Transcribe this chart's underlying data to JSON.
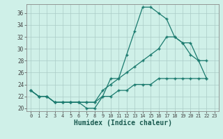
{
  "title": "",
  "xlabel": "Humidex (Indice chaleur)",
  "x": [
    0,
    1,
    2,
    3,
    4,
    5,
    6,
    7,
    8,
    9,
    10,
    11,
    12,
    13,
    14,
    15,
    16,
    17,
    18,
    19,
    20,
    21,
    22,
    23
  ],
  "line1": [
    23,
    22,
    22,
    21,
    21,
    21,
    21,
    20,
    20,
    22,
    25,
    25,
    29,
    33,
    37,
    37,
    36,
    35,
    32,
    31,
    29,
    28,
    25,
    null
  ],
  "line2": [
    23,
    22,
    22,
    21,
    21,
    21,
    21,
    21,
    21,
    23,
    24,
    25,
    26,
    27,
    28,
    29,
    30,
    32,
    32,
    31,
    31,
    28,
    28,
    null
  ],
  "line3": [
    23,
    22,
    22,
    21,
    21,
    21,
    21,
    21,
    21,
    22,
    22,
    23,
    23,
    24,
    24,
    24,
    25,
    25,
    25,
    25,
    25,
    25,
    25,
    null
  ],
  "ylim": [
    19.5,
    37.5
  ],
  "xlim": [
    -0.5,
    23.5
  ],
  "yticks": [
    20,
    22,
    24,
    26,
    28,
    30,
    32,
    34,
    36
  ],
  "xticks": [
    0,
    1,
    2,
    3,
    4,
    5,
    6,
    7,
    8,
    9,
    10,
    11,
    12,
    13,
    14,
    15,
    16,
    17,
    18,
    19,
    20,
    21,
    22,
    23
  ],
  "line_color": "#1a7a6e",
  "bg_color": "#cff0e8",
  "grid_color": "#aaccc6",
  "spine_color": "#888888",
  "xlabel_color": "#1a5a50"
}
